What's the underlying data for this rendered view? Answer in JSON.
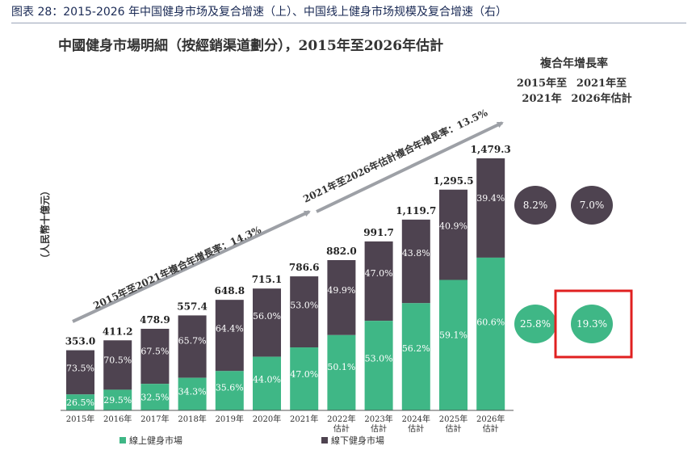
{
  "figure_caption": "图表 28：2015-2026 年中国健身市场及复合增速（上）、中国线上健身市场规模及复合增速（右）",
  "colors": {
    "online": "#3fb786",
    "offline": "#4e4350",
    "arrow": "#9da0a6",
    "highlight": "#e02020"
  },
  "chart_data": {
    "type": "bar",
    "stacked": true,
    "title": "中國健身市場明細（按經銷渠道劃分），2015年至2026年估計",
    "ylabel": "（人民幣十億元）",
    "categories": [
      "2015年",
      "2016年",
      "2017年",
      "2018年",
      "2019年",
      "2020年",
      "2021年",
      "2022年\n估計",
      "2023年\n估計",
      "2024年\n估計",
      "2025年\n估計",
      "2026年\n估計"
    ],
    "totals": [
      353.0,
      411.2,
      478.9,
      557.4,
      648.8,
      715.1,
      786.6,
      882.0,
      991.7,
      1119.7,
      1295.5,
      1479.3
    ],
    "total_labels": [
      "353.0",
      "411.2",
      "478.9",
      "557.4",
      "648.8",
      "715.1",
      "786.6",
      "882.0",
      "991.7",
      "1,119.7",
      "1,295.5",
      "1,479.3"
    ],
    "series": [
      {
        "name": "線上健身市場",
        "share_labels": [
          "26.5%",
          "29.5%",
          "32.5%",
          "34.3%",
          "35.6%",
          "44.0%",
          "47.0%",
          "50.1%",
          "53.0%",
          "56.2%",
          "59.1%",
          "60.6%"
        ],
        "shares": [
          26.5,
          29.5,
          32.5,
          34.3,
          35.6,
          44.0,
          47.0,
          50.1,
          53.0,
          56.2,
          59.1,
          60.6
        ]
      },
      {
        "name": "線下健身市場",
        "share_labels": [
          "73.5%",
          "70.5%",
          "67.5%",
          "65.7%",
          "64.4%",
          "56.0%",
          "53.0%",
          "49.9%",
          "47.0%",
          "43.8%",
          "40.9%",
          "39.4%"
        ],
        "shares": [
          73.5,
          70.5,
          67.5,
          65.7,
          64.4,
          56.0,
          53.0,
          49.9,
          47.0,
          43.8,
          40.9,
          39.4
        ]
      }
    ],
    "ylim": [
      0,
      1500
    ],
    "legend_position": "bottom",
    "annotations": {
      "cagr_2015_2021": "2015年至2021年複合年增長率：14.3%",
      "cagr_2021_2026": "2021年至2026年估計複合年增長率：13.5%"
    },
    "cagr_table": {
      "title": "複合年增長率",
      "col1_header": [
        "2015年至",
        "2021年"
      ],
      "col2_header": [
        "2021年至",
        "2026年估計"
      ],
      "offline": [
        "8.2%",
        "7.0%"
      ],
      "online": [
        "25.8%",
        "19.3%"
      ],
      "highlighted": "19.3%"
    }
  }
}
